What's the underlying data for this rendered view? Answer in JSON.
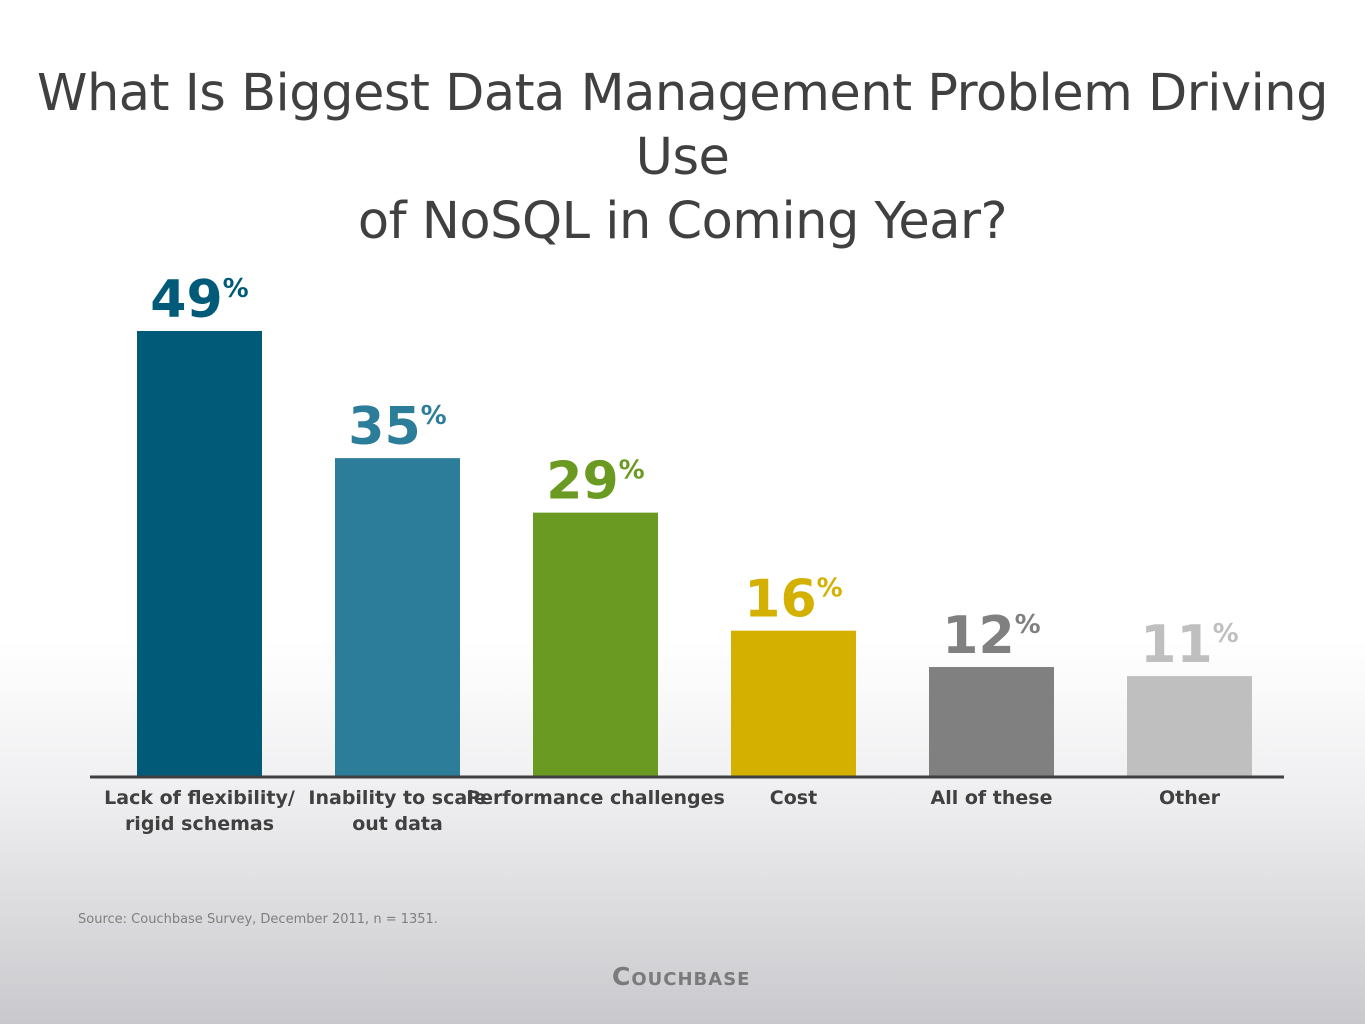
{
  "title": {
    "line1": "What Is Biggest Data Management Problem Driving Use",
    "line2": "of NoSQL in Coming Year?"
  },
  "chart_data": {
    "type": "bar",
    "title": "What Is Biggest Data Management Problem Driving Use of NoSQL in Coming Year?",
    "categories": [
      [
        "Lack of flexibility/",
        "rigid schemas"
      ],
      [
        "Inability to scale",
        "out data"
      ],
      [
        "Performance challenges"
      ],
      [
        "Cost"
      ],
      [
        "All of these"
      ],
      [
        "Other"
      ]
    ],
    "values": [
      49,
      35,
      29,
      16,
      12,
      11
    ],
    "value_suffix": "%",
    "colors": [
      "#015a78",
      "#2c7d99",
      "#6a9a21",
      "#d4b000",
      "#808080",
      "#bfbfbf"
    ],
    "ylim": [
      0,
      49
    ],
    "grid": false,
    "xlabel": "",
    "ylabel": ""
  },
  "footnote": "Source: Couchbase Survey, December 2011, n = 1351.",
  "brand": "Couchbase"
}
